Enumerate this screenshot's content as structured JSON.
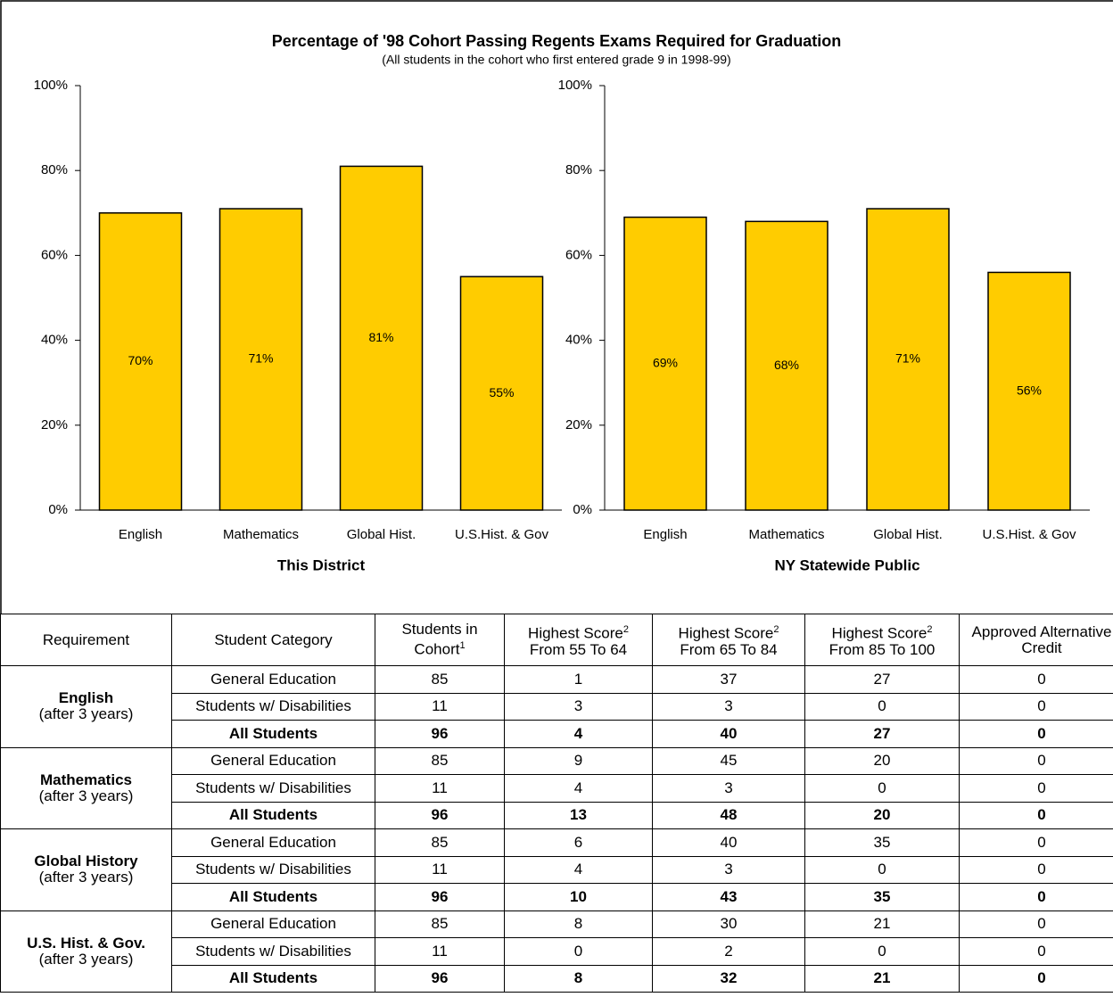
{
  "title": "Percentage of '98 Cohort Passing Regents Exams Required for Graduation",
  "subtitle": "(All students in the cohort who first entered grade 9 in 1998-99)",
  "chart_data": [
    {
      "type": "bar",
      "xlabel": "This District",
      "categories": [
        "English",
        "Mathematics",
        "Global Hist.",
        "U.S.Hist. & Gov"
      ],
      "values": [
        70,
        71,
        81,
        55
      ],
      "value_labels": [
        "70%",
        "71%",
        "81%",
        "55%"
      ],
      "color": "#ffcc00",
      "ylim": [
        0,
        100
      ],
      "yticks": [
        {
          "value": 0,
          "label": "0%"
        },
        {
          "value": 20,
          "label": "20%"
        },
        {
          "value": 40,
          "label": "40%"
        },
        {
          "value": 60,
          "label": "60%"
        },
        {
          "value": 80,
          "label": "80%"
        },
        {
          "value": 100,
          "label": "100%"
        }
      ]
    },
    {
      "type": "bar",
      "xlabel": "NY Statewide Public",
      "categories": [
        "English",
        "Mathematics",
        "Global Hist.",
        "U.S.Hist. & Gov"
      ],
      "values": [
        69,
        68,
        71,
        56
      ],
      "value_labels": [
        "69%",
        "68%",
        "71%",
        "56%"
      ],
      "color": "#ffcc00",
      "ylim": [
        0,
        100
      ],
      "yticks": [
        {
          "value": 0,
          "label": "0%"
        },
        {
          "value": 20,
          "label": "20%"
        },
        {
          "value": 40,
          "label": "40%"
        },
        {
          "value": 60,
          "label": "60%"
        },
        {
          "value": 80,
          "label": "80%"
        },
        {
          "value": 100,
          "label": "100%"
        }
      ]
    }
  ],
  "table": {
    "columns": [
      {
        "label": "Requirement"
      },
      {
        "label": "Student Category"
      },
      {
        "label": "Students in Cohort",
        "note": "1"
      },
      {
        "label": "Highest Score",
        "note": "2",
        "range": "From 55 To 64"
      },
      {
        "label": "Highest Score",
        "note": "2",
        "range": "From 65 To 84"
      },
      {
        "label": "Highest Score",
        "note": "2",
        "range": "From 85 To 100"
      },
      {
        "label": "Approved Alternative Credit"
      }
    ],
    "groups": [
      {
        "requirement": "English",
        "period": "(after 3 years)",
        "rows": [
          [
            "General Education",
            85,
            1,
            37,
            27,
            0
          ],
          [
            "Students w/ Disabilities",
            11,
            3,
            3,
            0,
            0
          ],
          [
            "All Students",
            96,
            4,
            40,
            27,
            0
          ]
        ]
      },
      {
        "requirement": "Mathematics",
        "period": "(after 3 years)",
        "rows": [
          [
            "General Education",
            85,
            9,
            45,
            20,
            0
          ],
          [
            "Students w/ Disabilities",
            11,
            4,
            3,
            0,
            0
          ],
          [
            "All Students",
            96,
            13,
            48,
            20,
            0
          ]
        ]
      },
      {
        "requirement": "Global History",
        "period": "(after 3 years)",
        "rows": [
          [
            "General Education",
            85,
            6,
            40,
            35,
            0
          ],
          [
            "Students w/ Disabilities",
            11,
            4,
            3,
            0,
            0
          ],
          [
            "All Students",
            96,
            10,
            43,
            35,
            0
          ]
        ]
      },
      {
        "requirement": "U.S. Hist. & Gov.",
        "period": "(after 3 years)",
        "rows": [
          [
            "General Education",
            85,
            8,
            30,
            21,
            0
          ],
          [
            "Students w/ Disabilities",
            11,
            0,
            2,
            0,
            0
          ],
          [
            "All Students",
            96,
            8,
            32,
            21,
            0
          ]
        ]
      }
    ]
  }
}
